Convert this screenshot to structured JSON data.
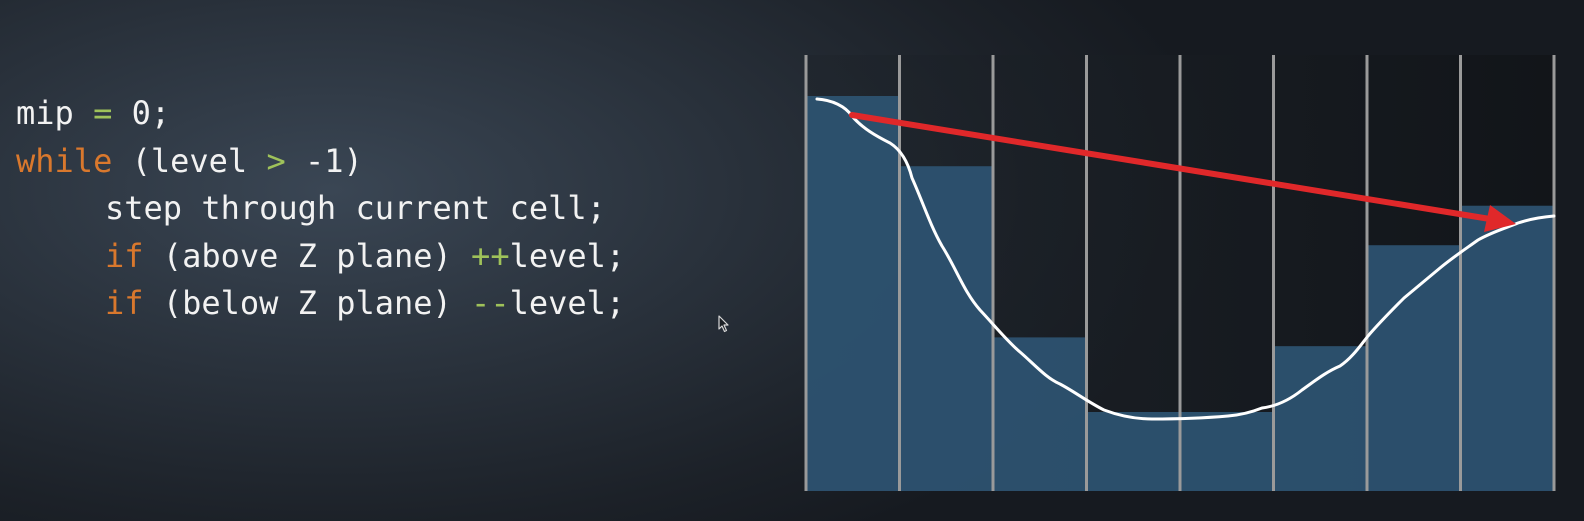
{
  "code": {
    "line1": {
      "var": "mip",
      "op": "=",
      "value": "0;"
    },
    "line2": {
      "keyword": "while",
      "cond_open": "(level",
      "op": ">",
      "cond_close": "-1)"
    },
    "line3": {
      "text": "step through current cell;"
    },
    "line4": {
      "keyword": "if",
      "cond": "(above Z plane)",
      "op": "++",
      "target": "level;"
    },
    "line5": {
      "keyword": "if",
      "cond": "(below Z plane)",
      "op": "--",
      "target": "level;"
    }
  },
  "colors": {
    "keyword": "#d9782d",
    "operator": "#9fc25a",
    "text": "#f2f2f2",
    "cell_fill": "#2e5472",
    "grid_line": "#9a9a9a",
    "surface_curve": "#ffffff",
    "ray_arrow": "#e0282a"
  },
  "diagram": {
    "cell_count": 8,
    "cell_heights_fraction": [
      0.9,
      0.74,
      0.35,
      0.18,
      0.18,
      0.33,
      0.56,
      0.65
    ],
    "ray": {
      "from_cell": 0,
      "to_cell": 7,
      "arrow_icon": "arrow-head-icon"
    }
  }
}
